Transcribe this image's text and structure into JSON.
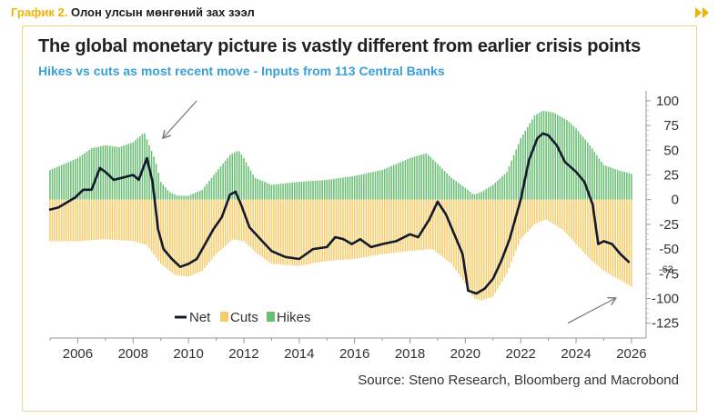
{
  "caption": {
    "prefix": "График 2.",
    "text": "Олон улсын мөнгөний зах зээл"
  },
  "icons": {
    "nav": "double-chevron-right-icon"
  },
  "colors": {
    "hikes": "#6abf75",
    "cuts": "#f7cd6b",
    "net": "#141a2e",
    "accent": "#f0b400",
    "subtitle": "#3aa0d8"
  },
  "chart_data": {
    "type": "bar",
    "title": "The global monetary picture is vastly different from earlier crisis points",
    "subtitle": "Hikes vs cuts as most recent move - Inputs from 113 Central Banks",
    "source": "Source: Steno Research, Bloomberg and Macrobond",
    "xlim": [
      2005,
      2026.2
    ],
    "ylim": [
      -140,
      110
    ],
    "y_ticks": [
      100,
      75,
      50,
      25,
      0,
      -25,
      -50,
      -75,
      -100,
      -125
    ],
    "x_ticks": [
      2006,
      2008,
      2010,
      2012,
      2014,
      2016,
      2018,
      2020,
      2022,
      2024,
      2026
    ],
    "legend": {
      "position": "bottom-left",
      "entries": [
        "Net",
        "Cuts",
        "Hikes"
      ]
    },
    "last_value_label": "-63",
    "series": [
      {
        "name": "Hikes",
        "type": "bar",
        "points": [
          [
            2005.0,
            30
          ],
          [
            2005.5,
            36
          ],
          [
            2006.0,
            42
          ],
          [
            2006.5,
            52
          ],
          [
            2007.0,
            55
          ],
          [
            2007.5,
            53
          ],
          [
            2008.0,
            58
          ],
          [
            2008.4,
            68
          ],
          [
            2008.8,
            40
          ],
          [
            2009.0,
            18
          ],
          [
            2009.3,
            8
          ],
          [
            2009.6,
            4
          ],
          [
            2010.0,
            4
          ],
          [
            2010.5,
            10
          ],
          [
            2011.0,
            28
          ],
          [
            2011.5,
            45
          ],
          [
            2011.8,
            50
          ],
          [
            2012.0,
            42
          ],
          [
            2012.4,
            22
          ],
          [
            2013.0,
            15
          ],
          [
            2014.0,
            18
          ],
          [
            2015.0,
            20
          ],
          [
            2016.0,
            24
          ],
          [
            2017.0,
            30
          ],
          [
            2018.0,
            42
          ],
          [
            2018.6,
            47
          ],
          [
            2019.0,
            36
          ],
          [
            2019.5,
            22
          ],
          [
            2020.0,
            12
          ],
          [
            2020.3,
            5
          ],
          [
            2020.6,
            8
          ],
          [
            2021.0,
            15
          ],
          [
            2021.5,
            28
          ],
          [
            2022.0,
            62
          ],
          [
            2022.5,
            85
          ],
          [
            2022.8,
            90
          ],
          [
            2023.2,
            88
          ],
          [
            2023.7,
            80
          ],
          [
            2024.0,
            72
          ],
          [
            2024.5,
            55
          ],
          [
            2025.0,
            35
          ],
          [
            2025.5,
            30
          ],
          [
            2026.0,
            26
          ]
        ]
      },
      {
        "name": "Cuts",
        "type": "bar",
        "points": [
          [
            2005.0,
            -42
          ],
          [
            2006.0,
            -42
          ],
          [
            2007.0,
            -40
          ],
          [
            2008.0,
            -42
          ],
          [
            2008.5,
            -46
          ],
          [
            2009.0,
            -65
          ],
          [
            2009.5,
            -76
          ],
          [
            2010.0,
            -78
          ],
          [
            2010.5,
            -72
          ],
          [
            2011.0,
            -55
          ],
          [
            2011.6,
            -40
          ],
          [
            2012.0,
            -42
          ],
          [
            2012.5,
            -55
          ],
          [
            2013.0,
            -65
          ],
          [
            2014.0,
            -67
          ],
          [
            2015.0,
            -62
          ],
          [
            2016.0,
            -60
          ],
          [
            2017.0,
            -55
          ],
          [
            2018.0,
            -52
          ],
          [
            2018.8,
            -50
          ],
          [
            2019.5,
            -65
          ],
          [
            2020.0,
            -85
          ],
          [
            2020.3,
            -100
          ],
          [
            2020.6,
            -102
          ],
          [
            2021.0,
            -98
          ],
          [
            2021.5,
            -75
          ],
          [
            2022.0,
            -40
          ],
          [
            2022.5,
            -25
          ],
          [
            2022.9,
            -20
          ],
          [
            2023.5,
            -30
          ],
          [
            2024.0,
            -45
          ],
          [
            2024.5,
            -60
          ],
          [
            2025.0,
            -72
          ],
          [
            2025.5,
            -80
          ],
          [
            2026.0,
            -88
          ]
        ]
      },
      {
        "name": "Net",
        "type": "line",
        "points": [
          [
            2005.0,
            -10
          ],
          [
            2005.3,
            -8
          ],
          [
            2005.6,
            -3
          ],
          [
            2005.9,
            2
          ],
          [
            2006.2,
            10
          ],
          [
            2006.5,
            10
          ],
          [
            2006.8,
            32
          ],
          [
            2007.0,
            28
          ],
          [
            2007.3,
            20
          ],
          [
            2007.6,
            22
          ],
          [
            2008.0,
            25
          ],
          [
            2008.2,
            20
          ],
          [
            2008.5,
            42
          ],
          [
            2008.7,
            18
          ],
          [
            2008.9,
            -30
          ],
          [
            2009.1,
            -50
          ],
          [
            2009.4,
            -60
          ],
          [
            2009.7,
            -68
          ],
          [
            2010.0,
            -65
          ],
          [
            2010.3,
            -60
          ],
          [
            2010.6,
            -45
          ],
          [
            2010.9,
            -30
          ],
          [
            2011.2,
            -18
          ],
          [
            2011.5,
            5
          ],
          [
            2011.7,
            8
          ],
          [
            2011.9,
            -5
          ],
          [
            2012.2,
            -28
          ],
          [
            2012.6,
            -40
          ],
          [
            2013.0,
            -52
          ],
          [
            2013.5,
            -58
          ],
          [
            2014.0,
            -60
          ],
          [
            2014.5,
            -50
          ],
          [
            2015.0,
            -48
          ],
          [
            2015.3,
            -38
          ],
          [
            2015.6,
            -40
          ],
          [
            2015.9,
            -45
          ],
          [
            2016.2,
            -40
          ],
          [
            2016.6,
            -48
          ],
          [
            2017.0,
            -45
          ],
          [
            2017.5,
            -42
          ],
          [
            2018.0,
            -35
          ],
          [
            2018.3,
            -38
          ],
          [
            2018.7,
            -20
          ],
          [
            2019.0,
            -2
          ],
          [
            2019.3,
            -15
          ],
          [
            2019.6,
            -35
          ],
          [
            2019.9,
            -55
          ],
          [
            2020.1,
            -92
          ],
          [
            2020.4,
            -95
          ],
          [
            2020.7,
            -90
          ],
          [
            2021.0,
            -80
          ],
          [
            2021.3,
            -62
          ],
          [
            2021.6,
            -40
          ],
          [
            2022.0,
            0
          ],
          [
            2022.3,
            40
          ],
          [
            2022.6,
            62
          ],
          [
            2022.8,
            67
          ],
          [
            2023.0,
            65
          ],
          [
            2023.3,
            55
          ],
          [
            2023.6,
            38
          ],
          [
            2024.0,
            28
          ],
          [
            2024.3,
            18
          ],
          [
            2024.6,
            -5
          ],
          [
            2024.8,
            -45
          ],
          [
            2025.0,
            -42
          ],
          [
            2025.3,
            -45
          ],
          [
            2025.6,
            -55
          ],
          [
            2025.9,
            -63
          ]
        ]
      }
    ]
  }
}
